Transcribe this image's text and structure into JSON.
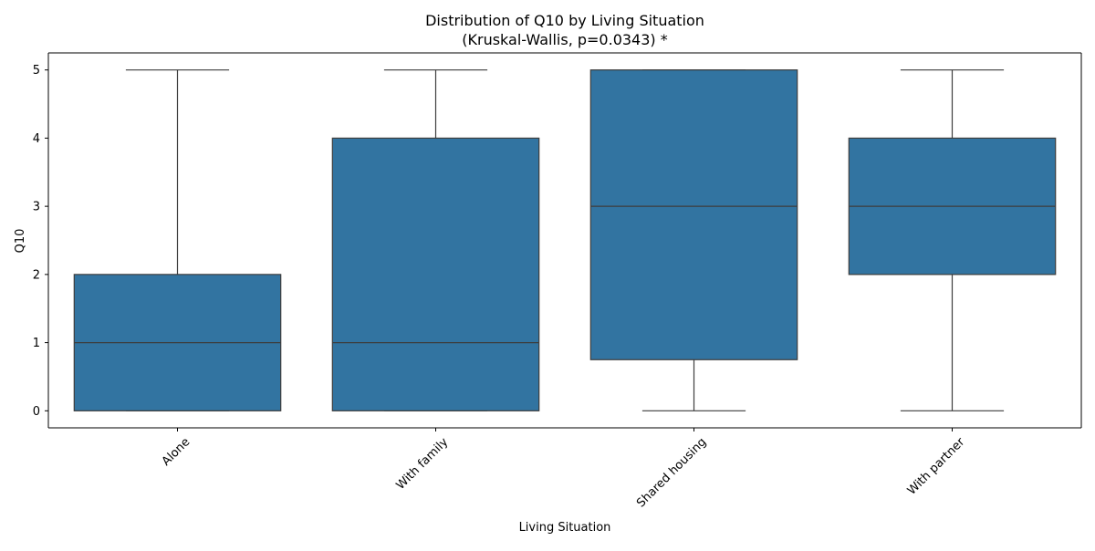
{
  "chart_data": {
    "type": "box",
    "title_line1": "Distribution of Q10 by Living Situation",
    "title_line2": "(Kruskal-Wallis, p=0.0343) *",
    "xlabel": "Living Situation",
    "ylabel": "Q10",
    "ylim": [
      -0.25,
      5.25
    ],
    "yticks": [
      0,
      1,
      2,
      3,
      4,
      5
    ],
    "categories": [
      "Alone",
      "With family",
      "Shared housing",
      "With partner"
    ],
    "boxes": [
      {
        "category": "Alone",
        "min": 0,
        "q1": 0,
        "median": 1,
        "q3": 2,
        "max": 5
      },
      {
        "category": "With family",
        "min": 0,
        "q1": 0,
        "median": 1,
        "q3": 4,
        "max": 5
      },
      {
        "category": "Shared housing",
        "min": 0,
        "q1": 0.75,
        "median": 3,
        "q3": 5,
        "max": 5
      },
      {
        "category": "With partner",
        "min": 0,
        "q1": 2,
        "median": 3,
        "q3": 4,
        "max": 5
      }
    ],
    "box_color": "#3274a1",
    "line_color": "#3d3d3d",
    "grid": false,
    "legend": "none"
  }
}
